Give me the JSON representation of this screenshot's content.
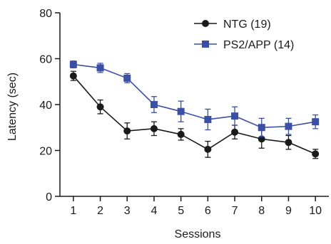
{
  "chart_data": {
    "type": "line",
    "xlabel": "Sessions",
    "ylabel": "Latency (sec)",
    "x": [
      1,
      2,
      3,
      4,
      5,
      6,
      7,
      8,
      9,
      10
    ],
    "xlim": [
      0.5,
      10.5
    ],
    "ylim": [
      0,
      80
    ],
    "yticks": [
      0,
      20,
      40,
      60,
      80
    ],
    "grid": false,
    "legend_position": "top-right",
    "series": [
      {
        "name": "NTG (19)",
        "color": "#1a1a1a",
        "marker": "circle",
        "values": [
          52.5,
          39,
          28.5,
          29.5,
          27,
          20.5,
          28,
          25,
          23.5,
          18.5
        ],
        "error": [
          2,
          3,
          3.5,
          3,
          2.5,
          3.5,
          3,
          4,
          3,
          2
        ]
      },
      {
        "name": "PS2/APP (14)",
        "color": "#3a4fa6",
        "marker": "square",
        "values": [
          57.5,
          56,
          51.5,
          40,
          37,
          33.5,
          35,
          30,
          30.5,
          32.5
        ],
        "error": [
          1.5,
          2,
          2,
          3.5,
          4.5,
          4.5,
          4,
          4,
          3.5,
          3
        ]
      }
    ]
  }
}
